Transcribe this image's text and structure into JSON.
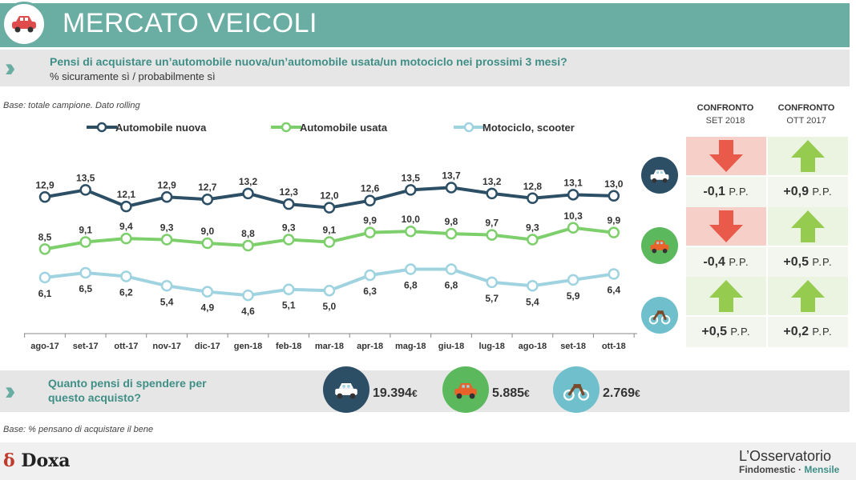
{
  "header": {
    "title": "MERCATO VEICOLI"
  },
  "question": {
    "text": "Pensi di acquistare un’automobile nuova/un’automobile usata/un motociclo nei prossimi 3 mesi?",
    "subtitle": "% sicuramente sì / probabilmente sì"
  },
  "base_note": "Base: totale campione. Dato rolling",
  "confronto": {
    "col1": {
      "title": "CONFRONTO",
      "sub": "SET 2018"
    },
    "col2": {
      "title": "CONFRONTO",
      "sub": "OTT 2017"
    },
    "rows": [
      {
        "vehicle": "car-new-icon",
        "c1": {
          "dir": "down",
          "value": "-0,1",
          "unit": "P.P."
        },
        "c2": {
          "dir": "up",
          "value": "+0,9",
          "unit": "P.P."
        }
      },
      {
        "vehicle": "car-used-icon",
        "c1": {
          "dir": "down",
          "value": "-0,4",
          "unit": "P.P."
        },
        "c2": {
          "dir": "up",
          "value": "+0,5",
          "unit": "P.P."
        }
      },
      {
        "vehicle": "motorcycle-icon",
        "c1": {
          "dir": "up",
          "value": "+0,5",
          "unit": "P.P."
        },
        "c2": {
          "dir": "up",
          "value": "+0,2",
          "unit": "P.P."
        }
      }
    ],
    "colors": {
      "neg": "#e84c3d",
      "pos": "#8cc63f"
    }
  },
  "spend": {
    "question": "Quanto pensi di spendere per questo acquisto?",
    "items": [
      {
        "icon": "car-new-icon",
        "value": "19.394",
        "currency": "€",
        "color": "#2d4f66"
      },
      {
        "icon": "car-used-icon",
        "value": "5.885",
        "currency": "€",
        "color": "#5cb85c"
      },
      {
        "icon": "motorcycle-icon",
        "value": "2.769",
        "currency": "€",
        "color": "#6fc0cc"
      }
    ],
    "note": "Base: % pensano di acquistare il bene"
  },
  "footer": {
    "doxa": "Doxa",
    "brand": "L’Osservatorio",
    "brand_sub1": "Findomestic · ",
    "brand_sub2": "Mensile"
  },
  "chart_data": {
    "type": "line",
    "categories": [
      "ago-17",
      "set-17",
      "ott-17",
      "nov-17",
      "dic-17",
      "gen-18",
      "feb-18",
      "mar-18",
      "apr-18",
      "mag-18",
      "giu-18",
      "lug-18",
      "ago-18",
      "set-18",
      "ott-18"
    ],
    "series": [
      {
        "name": "Automobile nuova",
        "color": "#2d4f66",
        "values": [
          12.9,
          13.5,
          12.1,
          12.9,
          12.7,
          13.2,
          12.3,
          12.0,
          12.6,
          13.5,
          13.7,
          13.2,
          12.8,
          13.1,
          13.0
        ],
        "labels": [
          "12,9",
          "13,5",
          "12,1",
          "12,9",
          "12,7",
          "13,2",
          "12,3",
          "12,0",
          "12,6",
          "13,5",
          "13,7",
          "13,2",
          "12,8",
          "13,1",
          "13,0"
        ]
      },
      {
        "name": "Automobile usata",
        "color": "#7ccf6a",
        "values": [
          8.5,
          9.1,
          9.4,
          9.3,
          9.0,
          8.8,
          9.3,
          9.1,
          9.9,
          10.0,
          9.8,
          9.7,
          9.3,
          10.3,
          9.9
        ],
        "labels": [
          "8,5",
          "9,1",
          "9,4",
          "9,3",
          "9,0",
          "8,8",
          "9,3",
          "9,1",
          "9,9",
          "10,0",
          "9,8",
          "9,7",
          "9,3",
          "10,3",
          "9,9"
        ]
      },
      {
        "name": "Motociclo, scooter",
        "color": "#9fd3e0",
        "values": [
          6.1,
          6.5,
          6.2,
          5.4,
          4.9,
          4.6,
          5.1,
          5.0,
          6.3,
          6.8,
          6.8,
          5.7,
          5.4,
          5.9,
          6.4
        ],
        "labels": [
          "6,1",
          "6,5",
          "6,2",
          "5,4",
          "4,9",
          "4,6",
          "5,1",
          "5,0",
          "6,3",
          "6,8",
          "6,8",
          "5,7",
          "5,4",
          "5,9",
          "6,4"
        ]
      }
    ],
    "legend_position": "top",
    "grid": false
  }
}
